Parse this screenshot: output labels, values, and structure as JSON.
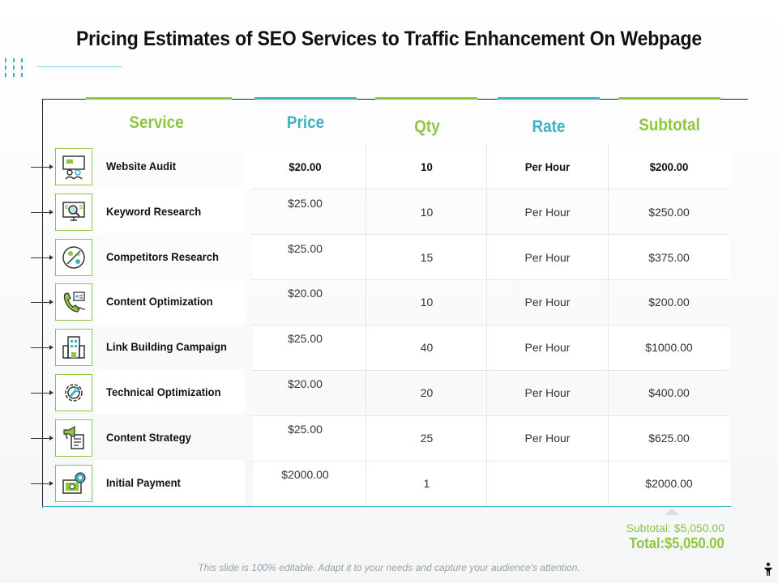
{
  "title": "Pricing Estimates of SEO Services to Traffic Enhancement On Webpage",
  "colors": {
    "green": "#8fc640",
    "teal": "#3bb3c3",
    "text": "#111111"
  },
  "headers": {
    "service": "Service",
    "price": "Price",
    "qty": "Qty",
    "rate": "Rate",
    "subtotal": "Subtotal"
  },
  "rows": [
    {
      "service": "Website Audit",
      "icon": "audit-people-icon",
      "price": "$20.00",
      "qty": "10",
      "rate": "Per Hour",
      "subtotal": "$200.00"
    },
    {
      "service": "Keyword Research",
      "icon": "monitor-search-icon",
      "price": "$25.00",
      "qty": "10",
      "rate": "Per Hour",
      "subtotal": "$250.00"
    },
    {
      "service": "Competitors Research",
      "icon": "competitors-icon",
      "price": "$25.00",
      "qty": "15",
      "rate": "Per Hour",
      "subtotal": "$375.00"
    },
    {
      "service": "Content Optimization",
      "icon": "phone-content-icon",
      "price": "$20.00",
      "qty": "10",
      "rate": "Per Hour",
      "subtotal": "$200.00"
    },
    {
      "service": "Link Building Campaign",
      "icon": "building-icon",
      "price": "$25.00",
      "qty": "40",
      "rate": "Per Hour",
      "subtotal": "$1000.00"
    },
    {
      "service": "Technical  Optimization",
      "icon": "gear-wrench-icon",
      "price": "$20.00",
      "qty": "20",
      "rate": "Per Hour",
      "subtotal": "$400.00"
    },
    {
      "service": "Content Strategy",
      "icon": "megaphone-doc-icon",
      "price": "$25.00",
      "qty": "25",
      "rate": "Per Hour",
      "subtotal": "$625.00"
    },
    {
      "service": "Initial Payment",
      "icon": "payment-icon",
      "price": "$2000.00",
      "qty": "1",
      "rate": "",
      "subtotal": "$2000.00"
    }
  ],
  "summary": {
    "subtotal": "Subtotal: $5,050.00",
    "total": "Total:$5,050.00"
  },
  "footer": "This slide is 100% editable. Adapt it to your needs and capture your audience's attention."
}
